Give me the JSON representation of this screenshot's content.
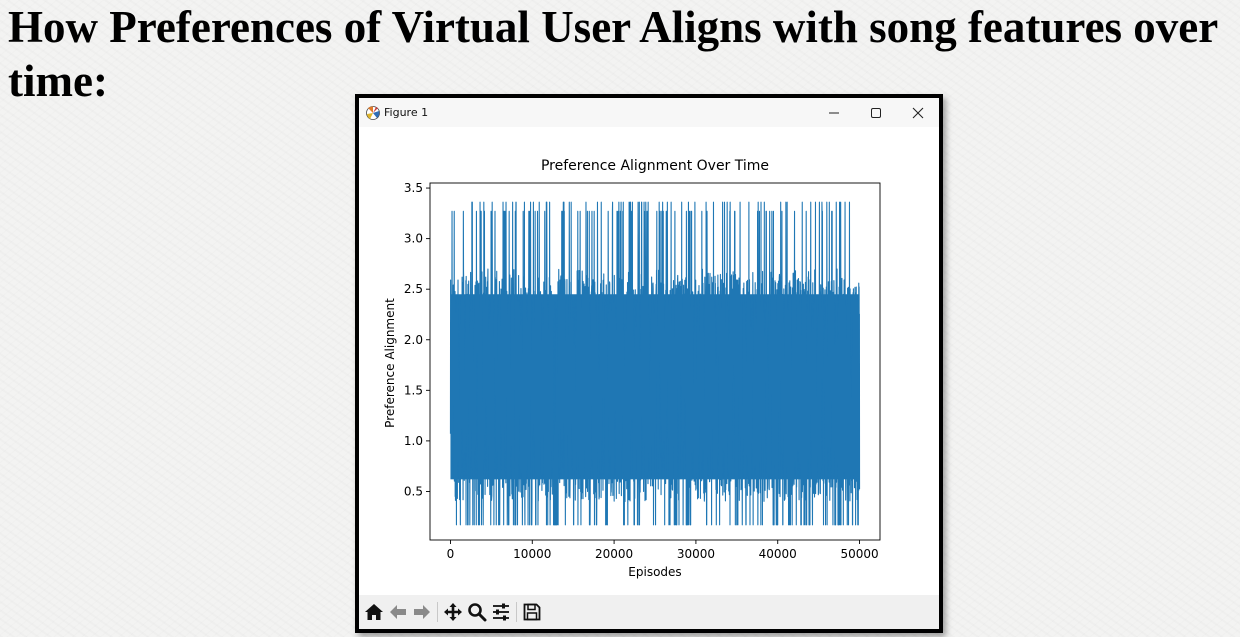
{
  "slide": {
    "title": "How Preferences of Virtual User Aligns with song features over time:"
  },
  "window": {
    "title": "Figure 1",
    "app_icon": "matplotlib-icon",
    "controls": [
      "minimize-icon",
      "maximize-icon",
      "close-icon"
    ]
  },
  "toolbar": {
    "buttons": [
      "home-icon",
      "back-arrow-icon",
      "forward-arrow-icon",
      "pan-icon",
      "zoom-icon",
      "configure-subplots-icon",
      "save-icon"
    ]
  },
  "colors": {
    "line": "#1f77b4",
    "window_border": "#000000",
    "toolbar_bg": "#f0f0f0"
  },
  "chart_data": {
    "type": "line",
    "title": "Preference Alignment Over Time",
    "xlabel": "Episodes",
    "ylabel": "Preference Alignment",
    "xlim": [
      -2500,
      52500
    ],
    "ylim": [
      0.02,
      3.55
    ],
    "xticks": [
      0,
      10000,
      20000,
      30000,
      40000,
      50000
    ],
    "yticks": [
      0.5,
      1.0,
      1.5,
      2.0,
      2.5,
      3.0,
      3.5
    ],
    "xtick_labels": [
      "0",
      "10000",
      "20000",
      "30000",
      "40000",
      "50000"
    ],
    "ytick_labels": [
      "0.5",
      "1.0",
      "1.5",
      "2.0",
      "2.5",
      "3.0",
      "3.5"
    ],
    "grid": false,
    "series": [
      {
        "x_range": [
          0,
          50000
        ],
        "y_min": 0.17,
        "y_max": 3.36,
        "dense_band": [
          0.4,
          2.6
        ],
        "frequent_levels": [
          0.17,
          2.7,
          3.27,
          3.36
        ],
        "color": "#1f77b4"
      }
    ]
  }
}
